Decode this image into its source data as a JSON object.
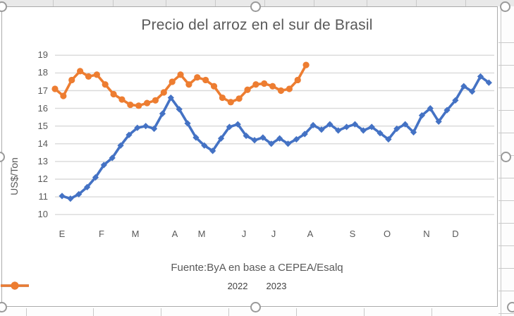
{
  "chart_data": {
    "type": "line",
    "title": "Precio del arroz en el sur de Brasil",
    "ylabel": "US$/Ton",
    "xlabel": "",
    "ylim": [
      10,
      19
    ],
    "y_ticks": [
      10,
      11,
      12,
      13,
      14,
      15,
      16,
      17,
      18,
      19
    ],
    "x_unit": "week",
    "month_labels": [
      "E",
      "F",
      "M",
      "A",
      "M",
      "J",
      "J",
      "A",
      "S",
      "O",
      "N",
      "D"
    ],
    "grid": "horizontal",
    "legend_position": "bottom",
    "source": "Fuente:ByA en base a CEPEA/Esalq",
    "series": [
      {
        "name": "2022",
        "color": "#4472C4",
        "marker": "diamond",
        "values": [
          11.05,
          10.9,
          11.15,
          11.55,
          12.1,
          12.8,
          13.2,
          13.9,
          14.5,
          14.9,
          15.0,
          14.85,
          15.7,
          16.6,
          15.95,
          15.15,
          14.35,
          13.9,
          13.6,
          14.3,
          14.95,
          15.1,
          14.45,
          14.2,
          14.35,
          14.0,
          14.3,
          14.0,
          14.25,
          14.55,
          15.05,
          14.8,
          15.1,
          14.75,
          14.95,
          15.1,
          14.75,
          14.95,
          14.6,
          14.25,
          14.85,
          15.1,
          14.65,
          15.6,
          16.0,
          15.25,
          15.9,
          16.45,
          17.25,
          16.95,
          17.8,
          17.45
        ]
      },
      {
        "name": "2023",
        "color": "#ED7D31",
        "marker": "circle",
        "values": [
          17.1,
          16.7,
          17.6,
          18.1,
          17.8,
          17.9,
          17.35,
          16.8,
          16.5,
          16.2,
          16.15,
          16.3,
          16.45,
          16.9,
          17.5,
          17.9,
          17.35,
          17.75,
          17.6,
          17.25,
          16.6,
          16.35,
          16.55,
          17.05,
          17.35,
          17.4,
          17.25,
          17.0,
          17.1,
          17.6,
          18.45
        ]
      }
    ]
  },
  "colors": {
    "gridline": "#d9d9d9",
    "axis_text": "#595959",
    "chart_border": "#ababab",
    "sheet_line": "#c9c9c9"
  }
}
